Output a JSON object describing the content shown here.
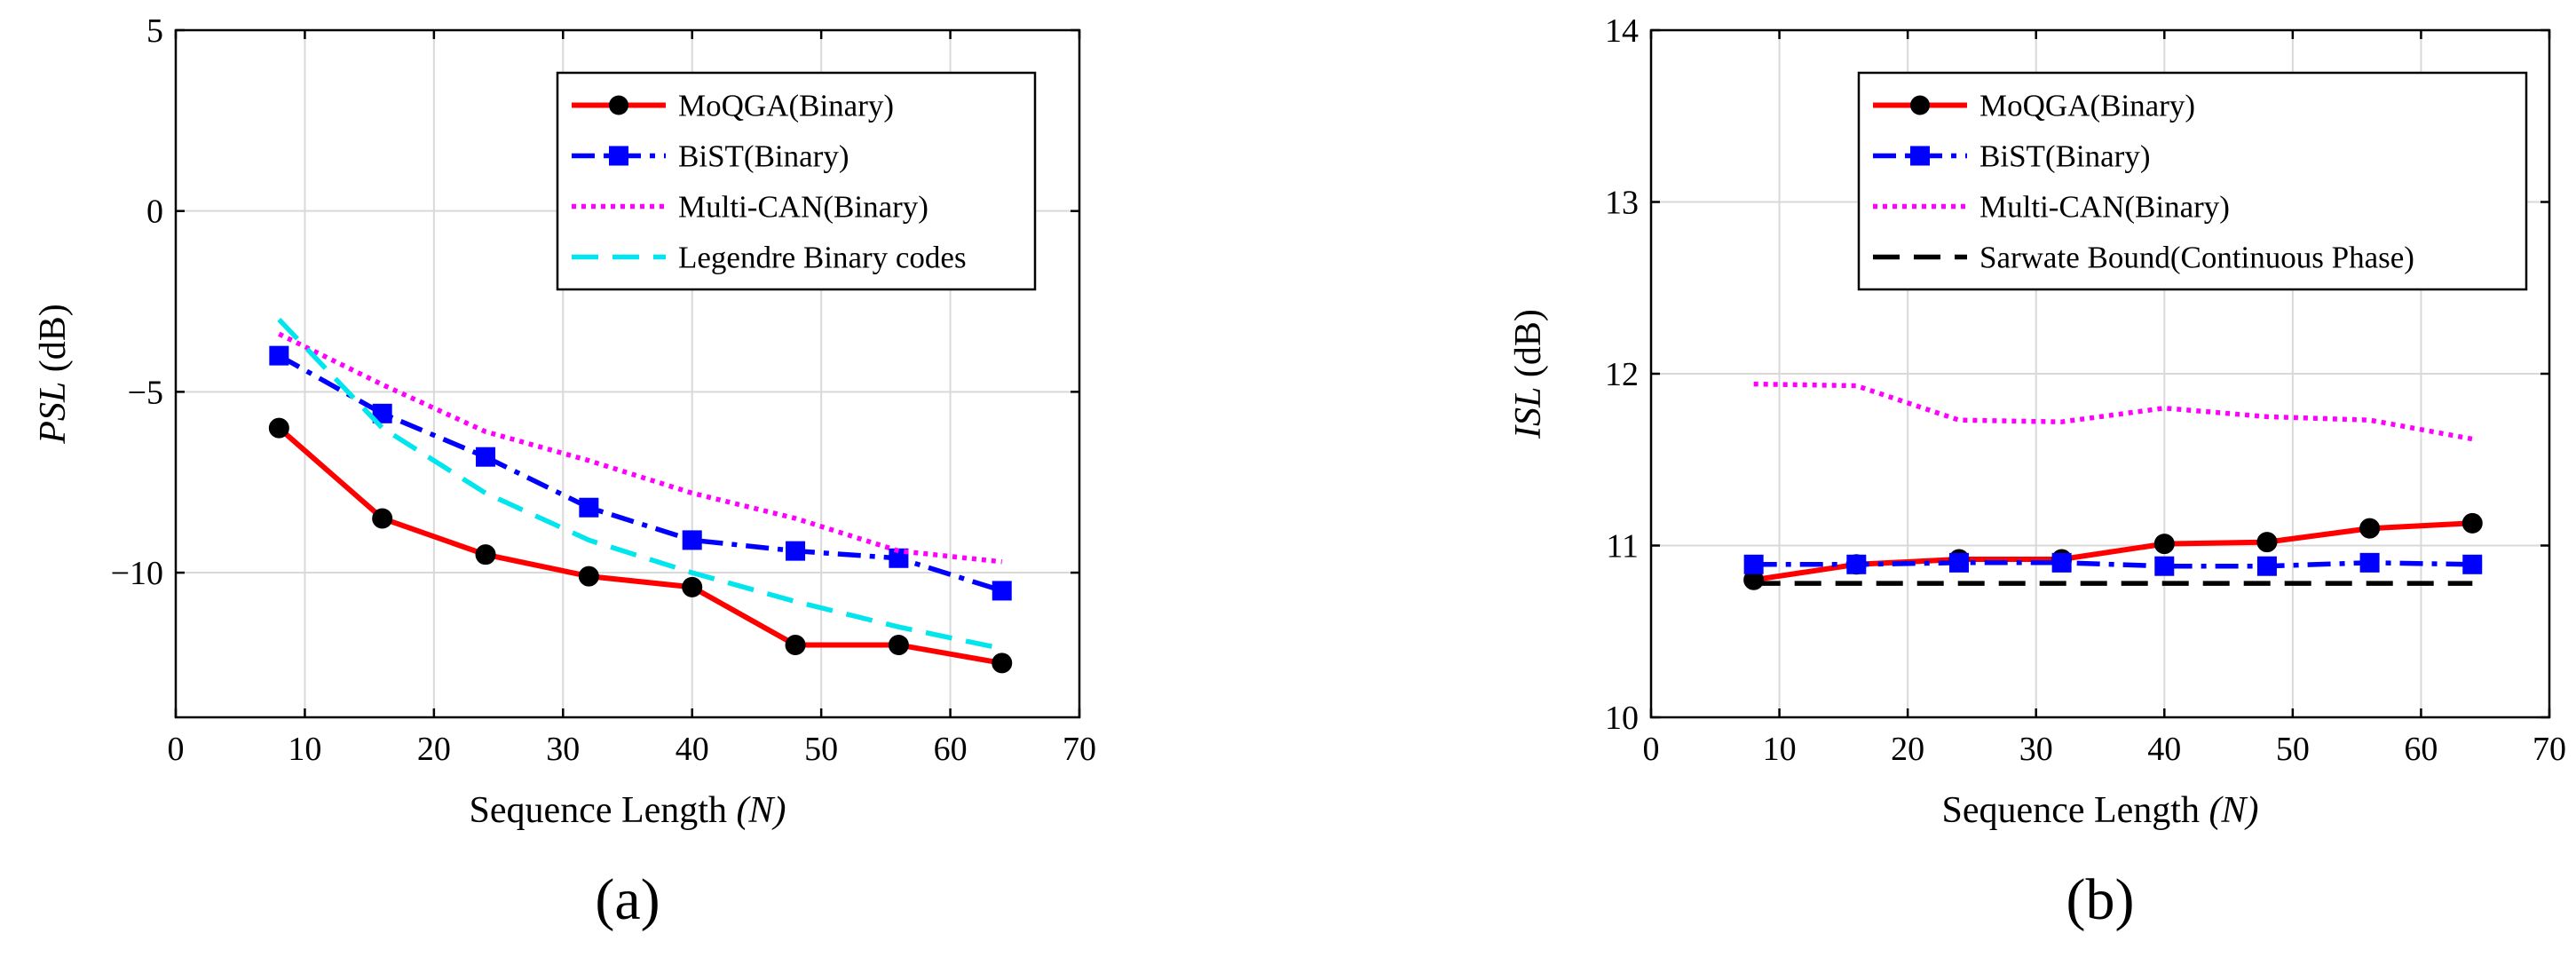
{
  "figure": {
    "captions": [
      "(a)",
      "(b)"
    ]
  },
  "chart_data": [
    {
      "type": "line",
      "id": "a",
      "caption": "(a)",
      "title": "",
      "xlabel": "Sequence Length",
      "xlabel_var": "(N)",
      "ylabel_var": "PSL",
      "ylabel_unit": "(dB)",
      "xlim": [
        0,
        70
      ],
      "ylim": [
        -14,
        5
      ],
      "xticks": [
        0,
        10,
        20,
        30,
        40,
        50,
        60,
        70
      ],
      "yticks": [
        5,
        0,
        -5,
        -10
      ],
      "ytick_labels": [
        "5",
        "0",
        "−5",
        "−10"
      ],
      "grid": true,
      "legend_position": "top-right",
      "series": [
        {
          "name": "MoQGA(Binary)",
          "color": "#ff0000",
          "style": "solid",
          "marker": "circle",
          "x": [
            8,
            16,
            24,
            32,
            40,
            48,
            56,
            64
          ],
          "values": [
            -6.0,
            -8.5,
            -9.5,
            -10.1,
            -10.4,
            -12.0,
            -12.0,
            -12.5
          ]
        },
        {
          "name": "BiST(Binary)",
          "color": "#0000ff",
          "style": "dashdot",
          "marker": "square",
          "x": [
            8,
            16,
            24,
            32,
            40,
            48,
            56,
            64
          ],
          "values": [
            -4.0,
            -5.6,
            -6.8,
            -8.2,
            -9.1,
            -9.4,
            -9.6,
            -10.5
          ]
        },
        {
          "name": "Multi-CAN(Binary)",
          "color": "#ff00ff",
          "style": "dotted",
          "marker": "none",
          "x": [
            8,
            16,
            24,
            32,
            40,
            48,
            56,
            64
          ],
          "values": [
            -3.4,
            -4.8,
            -6.1,
            -6.9,
            -7.8,
            -8.5,
            -9.4,
            -9.7
          ]
        },
        {
          "name": "Legendre Binary codes",
          "color": "#00e5ee",
          "style": "dashed",
          "marker": "none",
          "x": [
            8,
            16,
            24,
            32,
            40,
            48,
            56,
            64
          ],
          "values": [
            -3.0,
            -6.0,
            -7.8,
            -9.1,
            -10.0,
            -10.8,
            -11.5,
            -12.1
          ]
        }
      ]
    },
    {
      "type": "line",
      "id": "b",
      "caption": "(b)",
      "title": "",
      "xlabel": "Sequence Length",
      "xlabel_var": "(N)",
      "ylabel_var": "ISL",
      "ylabel_unit": "(dB)",
      "xlim": [
        0,
        70
      ],
      "ylim": [
        10,
        14
      ],
      "xticks": [
        0,
        10,
        20,
        30,
        40,
        50,
        60,
        70
      ],
      "yticks": [
        10,
        11,
        12,
        13,
        14
      ],
      "ytick_labels": [
        "10",
        "11",
        "12",
        "13",
        "14"
      ],
      "grid": true,
      "legend_position": "top-right",
      "series": [
        {
          "name": "MoQGA(Binary)",
          "color": "#ff0000",
          "style": "solid",
          "marker": "circle",
          "x": [
            8,
            16,
            24,
            32,
            40,
            48,
            56,
            64
          ],
          "values": [
            10.8,
            10.89,
            10.92,
            10.92,
            11.01,
            11.02,
            11.1,
            11.13
          ]
        },
        {
          "name": "BiST(Binary)",
          "color": "#0000ff",
          "style": "dashdot",
          "marker": "square",
          "x": [
            8,
            16,
            24,
            32,
            40,
            48,
            56,
            64
          ],
          "values": [
            10.89,
            10.89,
            10.9,
            10.9,
            10.88,
            10.88,
            10.9,
            10.89
          ]
        },
        {
          "name": "Multi-CAN(Binary)",
          "color": "#ff00ff",
          "style": "dotted",
          "marker": "none",
          "x": [
            8,
            16,
            24,
            32,
            40,
            48,
            56,
            64
          ],
          "values": [
            11.94,
            11.93,
            11.73,
            11.72,
            11.8,
            11.75,
            11.73,
            11.62
          ]
        },
        {
          "name": "Sarwate Bound(Continuous Phase)",
          "color": "#000000",
          "style": "dashed",
          "marker": "none",
          "x": [
            8,
            64
          ],
          "values": [
            10.78,
            10.78
          ]
        }
      ]
    }
  ]
}
